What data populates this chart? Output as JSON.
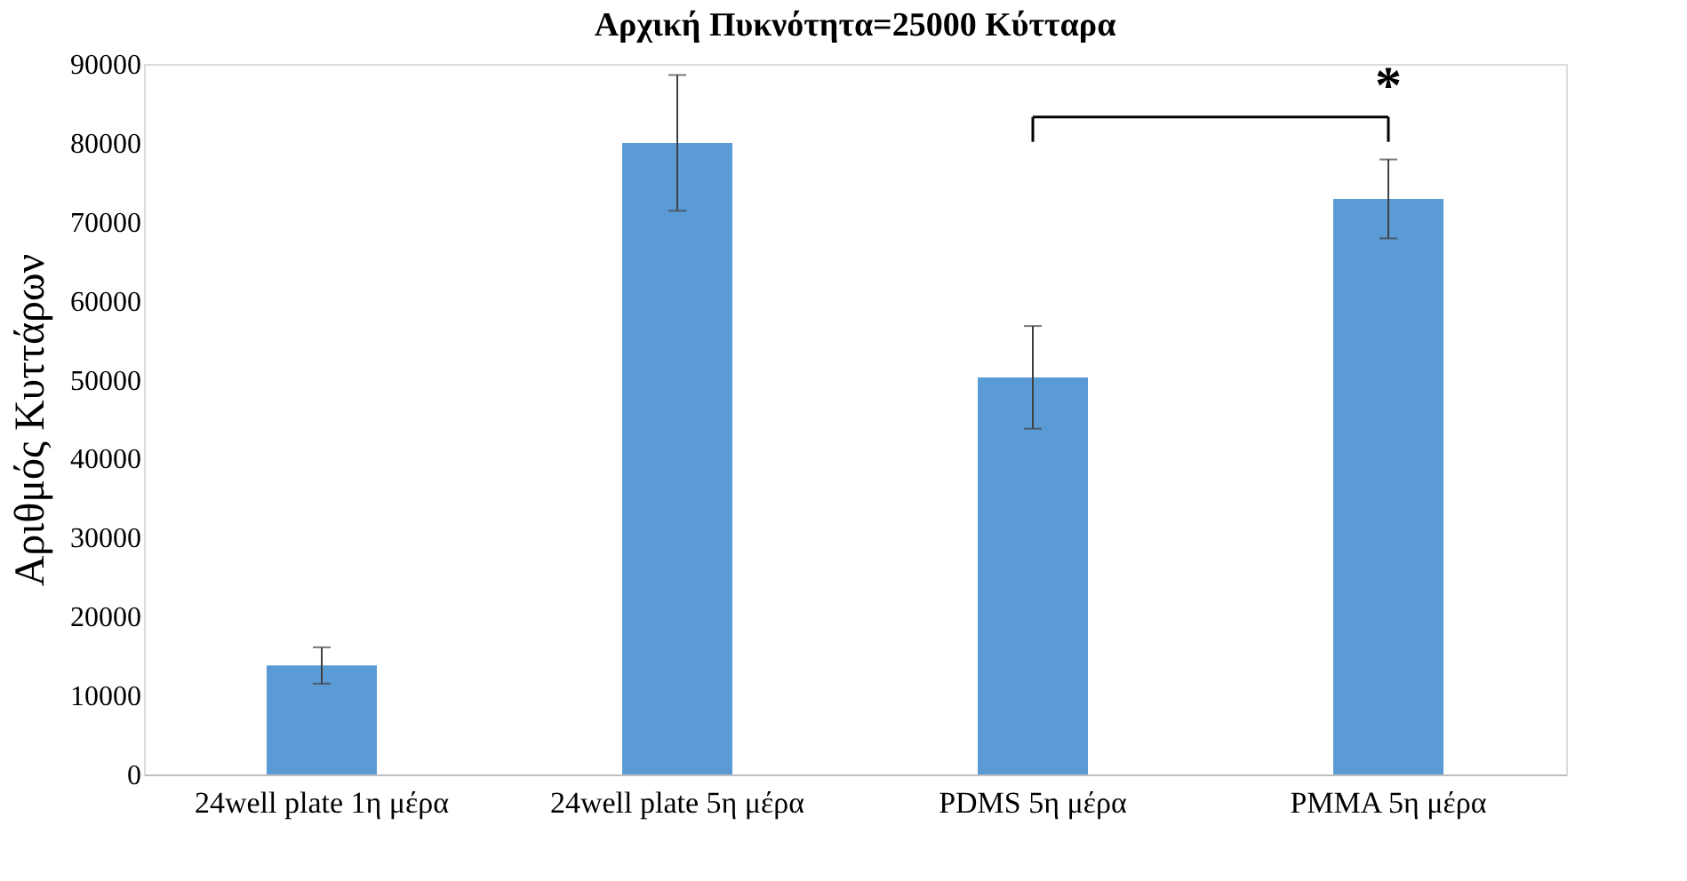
{
  "chart_data": {
    "type": "bar",
    "title": "Αρχική Πυκνότητα=25000 Κύτταρα",
    "ylabel": "Αριθμός Κυττάρων",
    "categories": [
      "24well plate 1η μέρα",
      "24well plate 5η μέρα",
      "PDMS 5η μέρα",
      "PMMA 5η μέρα"
    ],
    "values": [
      13800,
      80000,
      50300,
      72900
    ],
    "errors": [
      2300,
      8600,
      6500,
      5000
    ],
    "color": "#5b9bd5",
    "ylim": [
      0,
      90000
    ],
    "yticks": [
      0,
      10000,
      20000,
      30000,
      40000,
      50000,
      60000,
      70000,
      80000,
      90000
    ],
    "grid": false,
    "annotations": [
      "*"
    ]
  }
}
